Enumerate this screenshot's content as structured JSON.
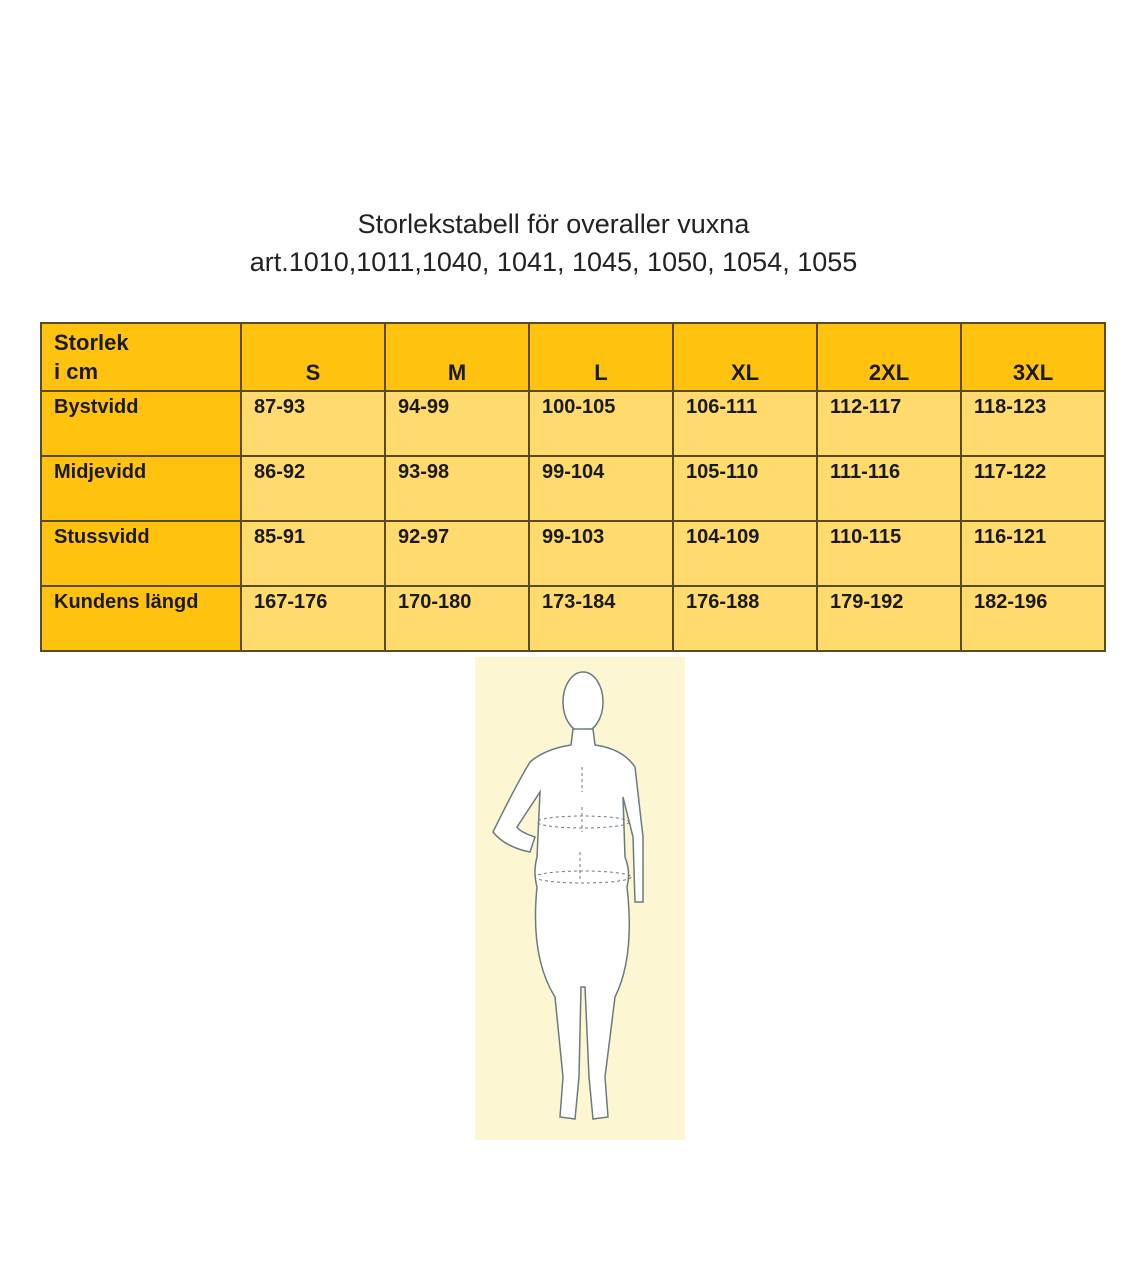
{
  "title_line1": "Storlekstabell för overaller vuxna",
  "title_line2": "art.1010,1011,1040, 1041, 1045, 1050, 1054, 1055",
  "table": {
    "corner_line1": "Storlek",
    "corner_line2": "i cm",
    "sizes": [
      "S",
      "M",
      "L",
      "XL",
      "2XL",
      "3XL"
    ],
    "rows": [
      {
        "label": "Bystvidd",
        "values": [
          "87-93",
          "94-99",
          "100-105",
          "106-111",
          "112-117",
          "118-123"
        ]
      },
      {
        "label": "Midjevidd",
        "values": [
          "86-92",
          "93-98",
          "99-104",
          "105-110",
          "111-116",
          "117-122"
        ]
      },
      {
        "label": "Stussvidd",
        "values": [
          "85-91",
          "92-97",
          "99-103",
          "104-109",
          "110-115",
          "116-121"
        ]
      },
      {
        "label": "Kundens längd",
        "values": [
          "167-176",
          "170-180",
          "173-184",
          "176-188",
          "179-192",
          "182-196"
        ]
      }
    ]
  },
  "colors": {
    "header": "#ffc20e",
    "cell": "#ffdb6e",
    "figure_bg": "#fcf6d2"
  }
}
